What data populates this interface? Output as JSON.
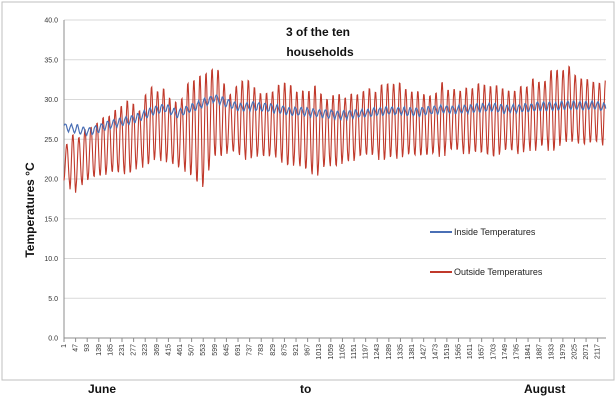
{
  "chart_data": {
    "type": "line",
    "title_lines": [
      "3 of the ten",
      "households"
    ],
    "ylabel": "Temperatures °C",
    "xlabel": "",
    "ylim": [
      0,
      40
    ],
    "yticks": [
      "0.0",
      "5.0",
      "10.0",
      "15.0",
      "20.0",
      "25.0",
      "30.0",
      "35.0",
      "40.0"
    ],
    "x_range": [
      1,
      2150
    ],
    "xticks": [
      "1",
      "47",
      "93",
      "139",
      "185",
      "231",
      "277",
      "323",
      "369",
      "415",
      "461",
      "507",
      "553",
      "599",
      "645",
      "691",
      "737",
      "783",
      "829",
      "875",
      "921",
      "967",
      "1013",
      "1059",
      "1105",
      "1151",
      "1197",
      "1243",
      "1289",
      "1335",
      "1381",
      "1427",
      "1473",
      "1519",
      "1565",
      "1611",
      "1657",
      "1703",
      "1749",
      "1795",
      "1841",
      "1887",
      "1933",
      "1979",
      "2025",
      "2071",
      "2117"
    ],
    "grid": true,
    "legend_placement": "right",
    "series": [
      {
        "name": "Inside Temperatures",
        "color": "#4a6fb5",
        "x": [
          1,
          50,
          100,
          150,
          200,
          250,
          300,
          350,
          400,
          450,
          500,
          550,
          600,
          650,
          700,
          750,
          800,
          850,
          900,
          950,
          1000,
          1050,
          1100,
          1150,
          1200,
          1250,
          1300,
          1350,
          1400,
          1450,
          1500,
          1550,
          1600,
          1650,
          1700,
          1750,
          1800,
          1850,
          1900,
          1950,
          2000,
          2050,
          2100,
          2150
        ],
        "y": [
          26.5,
          26.3,
          26.0,
          26.5,
          27.0,
          27.3,
          27.8,
          28.5,
          29.0,
          28.2,
          28.8,
          29.5,
          30.2,
          29.5,
          29.0,
          29.2,
          29.0,
          28.8,
          28.5,
          28.5,
          28.3,
          28.2,
          28.0,
          28.2,
          28.3,
          28.5,
          28.6,
          28.5,
          28.4,
          28.6,
          28.8,
          28.7,
          28.8,
          29.0,
          29.0,
          28.8,
          28.9,
          29.0,
          29.2,
          29.1,
          29.3,
          29.2,
          29.3,
          29.0
        ]
      },
      {
        "name": "Outside Temperatures",
        "color": "#c0392b",
        "x": [
          1,
          50,
          100,
          150,
          200,
          250,
          300,
          350,
          400,
          450,
          500,
          550,
          600,
          650,
          700,
          750,
          800,
          850,
          900,
          950,
          1000,
          1050,
          1100,
          1150,
          1200,
          1250,
          1300,
          1350,
          1400,
          1450,
          1500,
          1550,
          1600,
          1650,
          1700,
          1750,
          1800,
          1850,
          1900,
          1950,
          2000,
          2050,
          2100,
          2150
        ],
        "y_mean": [
          22.0,
          21.5,
          22.5,
          23.5,
          24.5,
          25.0,
          26.0,
          27.0,
          27.5,
          25.5,
          26.0,
          27.5,
          28.5,
          27.5,
          27.0,
          27.5,
          27.0,
          26.5,
          26.5,
          26.5,
          26.0,
          26.0,
          26.5,
          26.5,
          27.0,
          27.0,
          27.5,
          27.0,
          27.0,
          27.0,
          27.5,
          27.5,
          27.5,
          28.0,
          27.5,
          27.5,
          27.5,
          28.0,
          28.5,
          28.5,
          29.0,
          28.5,
          28.5,
          28.0
        ],
        "y_max": [
          25.0,
          26.0,
          27.0,
          28.0,
          29.5,
          30.0,
          29.5,
          32.0,
          31.5,
          30.0,
          33.0,
          34.0,
          36.0,
          31.5,
          33.5,
          32.0,
          31.5,
          32.5,
          32.0,
          31.5,
          32.0,
          31.0,
          31.0,
          31.5,
          32.5,
          32.0,
          33.0,
          32.0,
          32.0,
          31.5,
          32.5,
          32.5,
          32.0,
          33.0,
          32.5,
          32.5,
          32.0,
          33.0,
          33.5,
          34.5,
          35.5,
          33.5,
          33.0,
          32.5
        ],
        "y_min": [
          19.0,
          18.0,
          19.5,
          20.0,
          20.0,
          20.5,
          21.0,
          22.0,
          22.0,
          21.0,
          20.0,
          18.0,
          21.5,
          22.5,
          22.0,
          22.5,
          22.0,
          22.0,
          21.5,
          21.0,
          20.0,
          21.0,
          21.5,
          21.5,
          22.0,
          22.0,
          22.0,
          22.5,
          22.0,
          22.0,
          22.5,
          22.5,
          22.5,
          22.5,
          22.0,
          22.5,
          22.5,
          23.0,
          23.0,
          23.0,
          23.5,
          23.5,
          24.0,
          24.0
        ]
      }
    ],
    "footer_labels": [
      "June",
      "to",
      "August"
    ]
  }
}
